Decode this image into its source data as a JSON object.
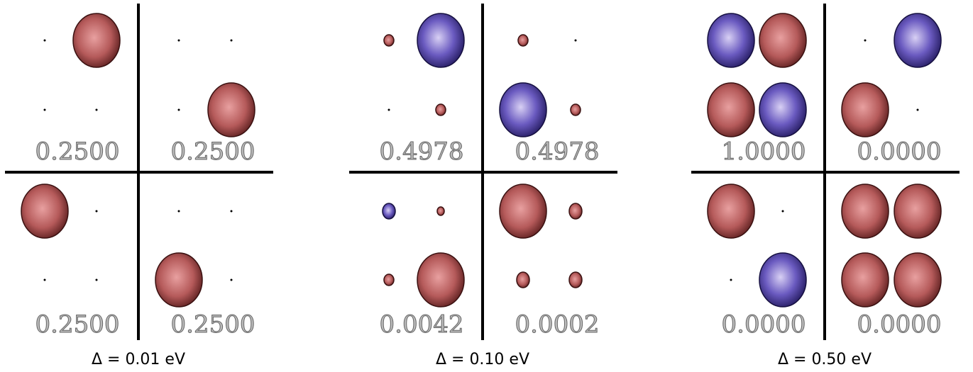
{
  "panels": [
    {
      "label": "Δ = 0.01 eV",
      "quadrants": [
        "0.2500",
        "0.2500",
        "0.2500",
        "0.2500"
      ]
    },
    {
      "label": "Δ = 0.10 eV",
      "quadrants": [
        "0.4978",
        "0.4978",
        "0.0042",
        "0.0002"
      ]
    },
    {
      "label": "Δ = 0.50 eV",
      "quadrants": [
        "1.0000",
        "0.0000",
        "0.0000",
        "0.0000"
      ]
    }
  ]
}
